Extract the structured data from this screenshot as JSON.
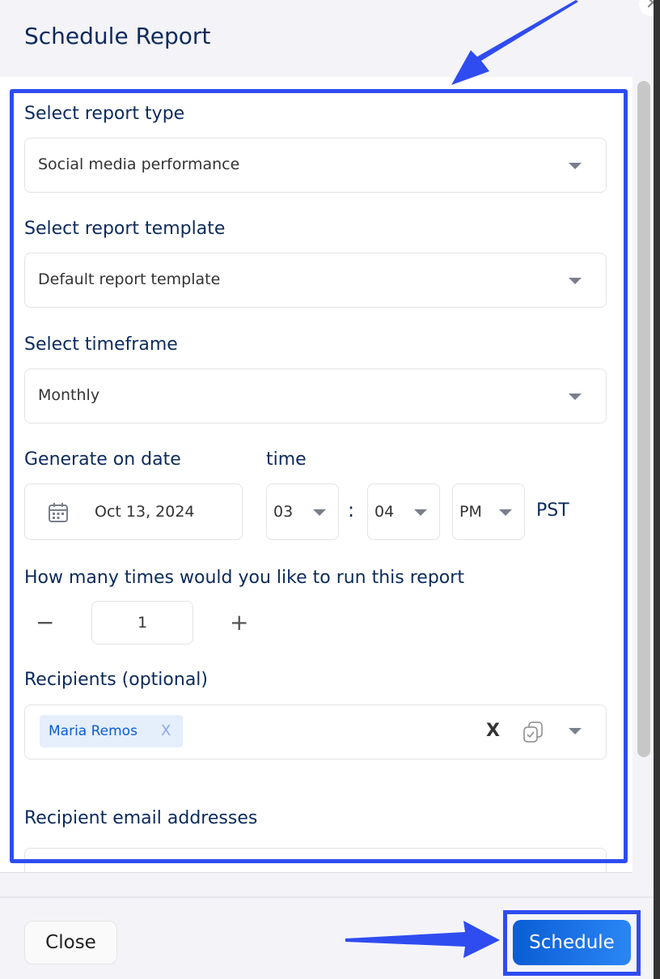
{
  "dialog": {
    "title": "Schedule Report"
  },
  "report_type": {
    "label": "Select report type",
    "value": "Social media performance"
  },
  "report_template": {
    "label": "Select report template",
    "value": "Default report template"
  },
  "timeframe": {
    "label": "Select timeframe",
    "value": "Monthly"
  },
  "date": {
    "label": "Generate on date",
    "value": "Oct 13, 2024",
    "icon": "calendar-icon"
  },
  "time": {
    "label": "time",
    "hour": "03",
    "separator": ":",
    "minute": "04",
    "ampm": "PM",
    "timezone": "PST"
  },
  "runs": {
    "label": "How many times would you like to run this report",
    "value": "1",
    "minus": "−",
    "plus": "+"
  },
  "recipients": {
    "label": "Recipients (optional)",
    "chips": [
      {
        "name": "Maria Remos",
        "remove": "X"
      }
    ],
    "clear": "X"
  },
  "emails": {
    "label": "Recipient email addresses"
  },
  "footer": {
    "close": "Close",
    "schedule": "Schedule"
  },
  "colors": {
    "highlight": "#2f4cf0",
    "primary": "#0a5dd4",
    "title": "#0b2a5c"
  }
}
